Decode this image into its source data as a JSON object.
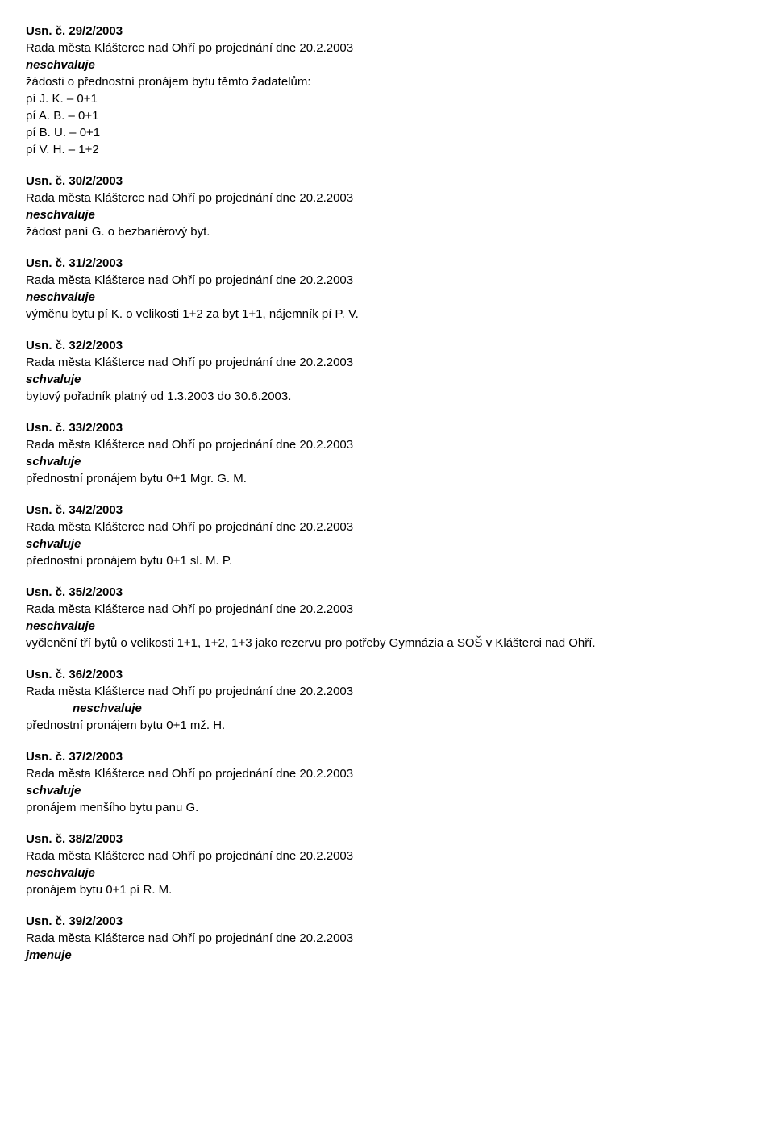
{
  "resolutions": [
    {
      "id": "r29",
      "heading": "Usn. č. 29/2/2003",
      "context": "Rada města Klášterce nad Ohří po projednání dne  20.2.2003",
      "verb": "neschvaluje",
      "verb_class": "verb-disapprove",
      "body": "žádosti o přednostní pronájem bytu těmto žadatelům:",
      "sublist": [
        "pí J. K.     – 0+1",
        "pí A. B.     – 0+1",
        "pí B. U.     – 0+1",
        "pí V. H.     – 1+2"
      ]
    },
    {
      "id": "r30",
      "heading": "Usn. č. 30/2/2003",
      "context": "Rada města Klášterce nad Ohří po projednání dne  20.2.2003",
      "verb": "neschvaluje",
      "verb_class": "verb-disapprove",
      "body": "žádost paní G. o bezbariérový byt."
    },
    {
      "id": "r31",
      "heading": "Usn. č. 31/2/2003",
      "context": "Rada města Klášterce nad Ohří po projednání dne  20.2.2003",
      "verb": "neschvaluje",
      "verb_class": "verb-disapprove",
      "body": "výměnu bytu pí K. o velikosti 1+2 za byt 1+1, nájemník pí P. V."
    },
    {
      "id": "r32",
      "heading": "Usn. č. 32/2/2003",
      "context": "Rada města Klášterce nad Ohří po projednání dne  20.2.2003",
      "verb": "schvaluje",
      "verb_class": "verb-approve",
      "body": "bytový pořadník platný od 1.3.2003 do 30.6.2003."
    },
    {
      "id": "r33",
      "heading": "Usn. č. 33/2/2003",
      "context": "Rada města Klášterce nad Ohří po projednání dne  20.2.2003",
      "verb": "schvaluje",
      "verb_class": "verb-approve",
      "body": "přednostní pronájem bytu 0+1 Mgr. G. M."
    },
    {
      "id": "r34",
      "heading": "Usn. č. 34/2/2003",
      "context": "Rada města Klášterce nad Ohří po projednání dne  20.2.2003",
      "verb": "schvaluje",
      "verb_class": "verb-approve",
      "body": "přednostní pronájem bytu 0+1 sl. M. P."
    },
    {
      "id": "r35",
      "heading": "Usn. č. 35/2/2003",
      "context": "Rada města Klášterce nad Ohří po projednání dne  20.2.2003",
      "verb": "neschvaluje",
      "verb_class": "verb-disapprove",
      "body": "vyčlenění tří bytů o velikosti 1+1, 1+2, 1+3 jako rezervu pro potřeby Gymnázia a SOŠ v Klášterci nad Ohří."
    },
    {
      "id": "r36",
      "heading": "Usn. č. 36/2/2003",
      "context": "Rada města Klášterce nad Ohří po projednání dne  20.2.2003",
      "verb": "neschvaluje",
      "verb_class": "verb-disapprove-indent",
      "body": "přednostní pronájem bytu 0+1 mž. H."
    },
    {
      "id": "r37",
      "heading": "Usn. č. 37/2/2003",
      "context": "Rada města Klášterce nad Ohří po projednání dne  20.2.2003",
      "verb": "schvaluje",
      "verb_class": "verb-approve",
      "body": "pronájem menšího bytu panu G."
    },
    {
      "id": "r38",
      "heading": "Usn. č. 38/2/2003",
      "context": "Rada města Klášterce nad Ohří po projednání dne  20.2.2003",
      "verb": "neschvaluje",
      "verb_class": "verb-disapprove",
      "body": "pronájem bytu 0+1 pí R. M."
    },
    {
      "id": "r39",
      "heading": "Usn. č. 39/2/2003",
      "context": "Rada města Klášterce nad Ohří po projednání dne 20.2.2003",
      "verb": "jmenuje",
      "verb_class": "verb-appoint",
      "body": ""
    }
  ]
}
